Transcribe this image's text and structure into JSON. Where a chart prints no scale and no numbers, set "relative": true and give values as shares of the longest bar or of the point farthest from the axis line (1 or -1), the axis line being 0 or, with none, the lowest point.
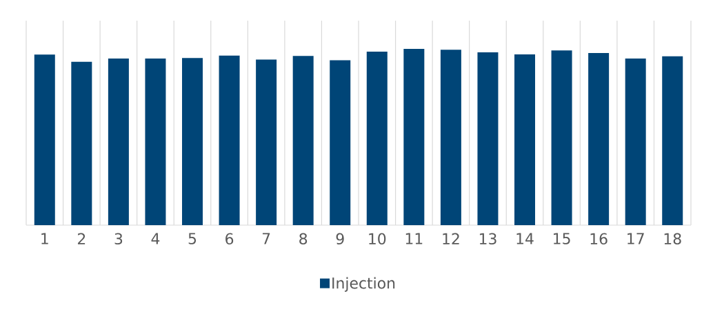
{
  "chart_data": {
    "type": "bar",
    "relative": true,
    "categories": [
      "1",
      "2",
      "3",
      "4",
      "5",
      "6",
      "7",
      "8",
      "9",
      "10",
      "11",
      "12",
      "13",
      "14",
      "15",
      "16",
      "17",
      "18"
    ],
    "series": [
      {
        "name": "Injection",
        "color": "#004577",
        "values": [
          0.968,
          0.927,
          0.945,
          0.945,
          0.948,
          0.962,
          0.939,
          0.96,
          0.936,
          0.984,
          1,
          0.995,
          0.98,
          0.969,
          0.991,
          0.977,
          0.945,
          0.958
        ]
      }
    ],
    "grid": "x",
    "legend": "bottom"
  }
}
